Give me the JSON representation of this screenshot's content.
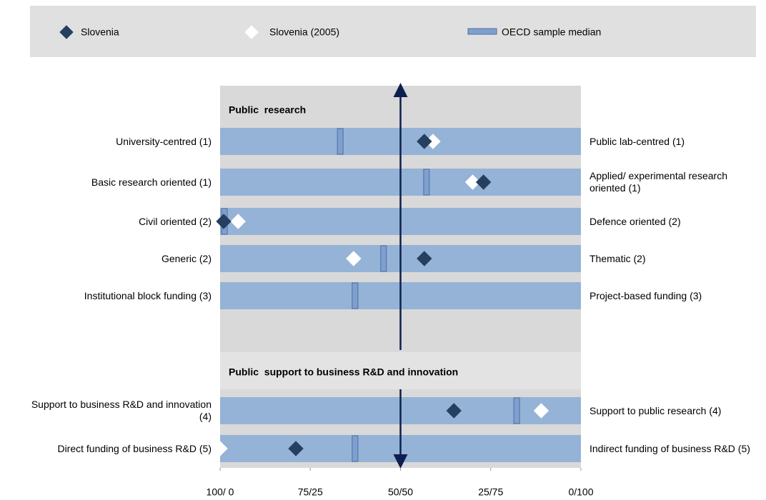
{
  "chart_data": {
    "type": "dotrange",
    "xlim": [
      0,
      100
    ],
    "xticks": [
      {
        "value": 0,
        "label": "100/ 0"
      },
      {
        "value": 25,
        "label": "75/25"
      },
      {
        "value": 50,
        "label": "50/50"
      },
      {
        "value": 75,
        "label": "25/75"
      },
      {
        "value": 100,
        "label": "0/100"
      }
    ],
    "series": [
      {
        "name": "Slovenia",
        "color": "#243f60",
        "marker": "diamond"
      },
      {
        "name": "Slovenia (2005)",
        "color": "#ffffff",
        "marker": "diamond"
      },
      {
        "name": "OECD sample median",
        "color": "#7f9fcf",
        "marker": "bar"
      }
    ],
    "sections": [
      {
        "title": "Public  research",
        "rows": [
          {
            "left": "University-centred (1)",
            "right": "Public lab-centred (1)",
            "values": [
              56.6,
              59,
              33.3
            ]
          },
          {
            "left": "Basic research oriented (1)",
            "right": "Applied/ experimental research oriented (1)",
            "values": [
              73,
              70,
              57.2
            ]
          },
          {
            "left": "Civil oriented (2)",
            "right": "Defence oriented (2)",
            "values": [
              1,
              5,
              1.2
            ]
          },
          {
            "left": "Generic (2)",
            "right": "Thematic  (2)",
            "values": [
              56.6,
              37,
              45.3
            ]
          },
          {
            "left": "Institutional block funding (3)",
            "right": "Project-based funding (3)",
            "values": [
              null,
              null,
              37.4
            ]
          }
        ]
      },
      {
        "title": "Public  support to business R&D and innovation",
        "rows": [
          {
            "left": "Support to business R&D and innovation (4)",
            "right": "Support to public research (4)",
            "values": [
              64.8,
              89,
              82.2
            ]
          },
          {
            "left": "Direct funding of business R&D (5)",
            "right": "Indirect funding of business R&D (5)",
            "values": [
              21,
              0,
              37.4
            ]
          }
        ]
      }
    ]
  }
}
